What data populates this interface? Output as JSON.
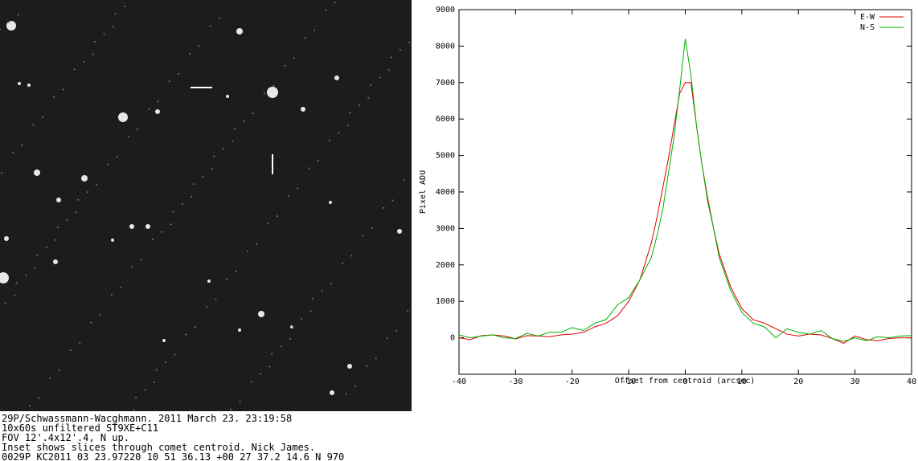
{
  "caption": [
    "29P/Schwassmann-Wacghmann. 2011 March 23. 23:19:58",
    "10x60s unfiltered ST9XE+C11",
    "FOV 12'.4x12'.4, N up.",
    "Inset shows slices through comet centroid. Nick James.",
    "0029P KC2011 03 23.97220 10 51 36.13 +00 27 37.2  14.6 N 970"
  ],
  "chart_data": {
    "type": "line",
    "x_label": "Offset from centroid (arcsec)",
    "y_label": "Pixel ADU",
    "x": [
      -40,
      -38,
      -36,
      -34,
      -32,
      -30,
      -28,
      -26,
      -24,
      -22,
      -20,
      -18,
      -16,
      -14,
      -12,
      -10,
      -8,
      -6,
      -5,
      -4,
      -3,
      -2,
      -1,
      0,
      1,
      2,
      3,
      4,
      5,
      6,
      8,
      10,
      12,
      14,
      16,
      18,
      20,
      22,
      24,
      26,
      28,
      30,
      32,
      34,
      36,
      38,
      40
    ],
    "series": [
      {
        "name": "E-W",
        "color": "#e00000",
        "values": [
          0,
          -50,
          60,
          80,
          50,
          -30,
          60,
          50,
          30,
          80,
          100,
          150,
          300,
          400,
          600,
          1000,
          1600,
          2600,
          3300,
          4100,
          4900,
          5800,
          6700,
          7000,
          7000,
          5800,
          4700,
          3800,
          3000,
          2300,
          1400,
          800,
          500,
          400,
          250,
          100,
          50,
          100,
          80,
          -20,
          -150,
          50,
          -50,
          -80,
          -20,
          0,
          0
        ]
      },
      {
        "name": "N-S",
        "color": "#00b000",
        "values": [
          80,
          0,
          50,
          80,
          0,
          -20,
          120,
          50,
          150,
          150,
          280,
          200,
          400,
          500,
          900,
          1100,
          1600,
          2200,
          2800,
          3500,
          4500,
          5500,
          6800,
          8200,
          7200,
          5800,
          4700,
          3700,
          3000,
          2200,
          1300,
          700,
          400,
          300,
          0,
          250,
          150,
          100,
          200,
          -20,
          -100,
          0,
          -80,
          30,
          0,
          50,
          60
        ]
      }
    ],
    "xlim": [
      -40,
      40
    ],
    "xticks": [
      -40,
      -30,
      -20,
      -10,
      0,
      10,
      20,
      30,
      40
    ],
    "ylim": [
      -1000,
      9000
    ],
    "yticks": [
      0,
      1000,
      2000,
      3000,
      4000,
      5000,
      6000,
      7000,
      8000,
      9000
    ],
    "legend": "upper right"
  }
}
